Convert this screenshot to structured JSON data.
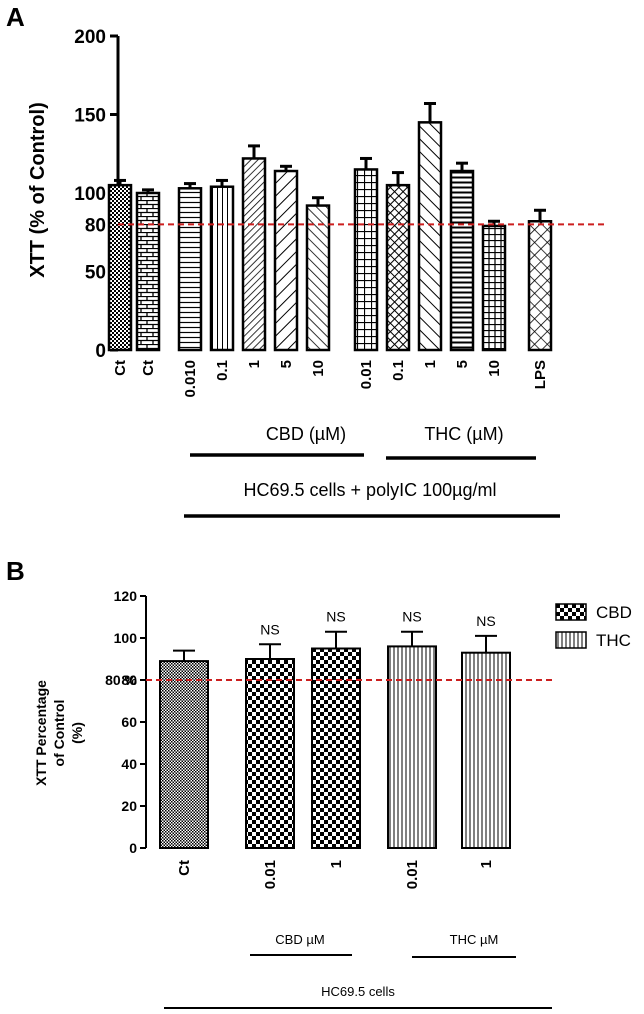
{
  "colors": {
    "bar_stroke": "#000000",
    "bar_fill": "#ffffff",
    "threshold_line": "#cc1f1f",
    "axis": "#000000"
  },
  "chart_data": [
    {
      "panel_label": "A",
      "type": "bar",
      "ylabel": "XTT (% of Control)",
      "ylim": [
        0,
        200
      ],
      "yticks": [
        "0",
        "50",
        "80",
        "100",
        "150",
        "200"
      ],
      "threshold": {
        "value": 80,
        "style": "dashed"
      },
      "categories": [
        "Ct",
        "Ct",
        "0.010",
        "0.1",
        "1",
        "5",
        "10",
        "0.01",
        "0.1",
        "1",
        "5",
        "10",
        "LPS"
      ],
      "values": [
        105,
        100,
        103,
        104,
        122,
        114,
        92,
        115,
        105,
        145,
        114,
        79,
        82
      ],
      "errors": [
        3,
        2,
        3,
        4,
        8,
        3,
        5,
        7,
        8,
        12,
        5,
        3,
        7
      ],
      "patterns": [
        "dots",
        "brick",
        "hlines",
        "vlines",
        "diag-up",
        "diag-up-wide",
        "diag-down",
        "grid",
        "diag-grid",
        "diag-down-wide",
        "hlines-thick",
        "grid-wide",
        "crosshatch"
      ],
      "group_labels": [
        {
          "text": "CBD (µM)"
        },
        {
          "text": "THC (µM)"
        },
        {
          "text": "HC69.5 cells + polyIC 100µg/ml"
        }
      ]
    },
    {
      "panel_label": "B",
      "type": "bar",
      "ylabel_lines": [
        "XTT  Percentage",
        "of Control",
        "(%)"
      ],
      "ylim": [
        0,
        120
      ],
      "yticks": [
        "0",
        "20",
        "40",
        "60",
        "80",
        "100",
        "120"
      ],
      "threshold": {
        "value": 80,
        "label": "80 %",
        "style": "dashed"
      },
      "categories": [
        "Ct",
        "0.01",
        "1",
        "0.01",
        "1"
      ],
      "values": [
        89,
        90,
        95,
        96,
        93
      ],
      "errors": [
        5,
        7,
        8,
        7,
        8
      ],
      "annotations": [
        "",
        "NS",
        "NS",
        "NS",
        "NS"
      ],
      "patterns": [
        "finecheck",
        "check",
        "check",
        "vstripes",
        "vstripes"
      ],
      "legend": [
        {
          "label": "CBD",
          "pattern": "check"
        },
        {
          "label": "THC",
          "pattern": "vstripes"
        }
      ],
      "legend_position": "right",
      "group_labels": [
        {
          "text": "CBD µM"
        },
        {
          "text": "THC µM"
        },
        {
          "text": "HC69.5 cells"
        }
      ]
    }
  ]
}
